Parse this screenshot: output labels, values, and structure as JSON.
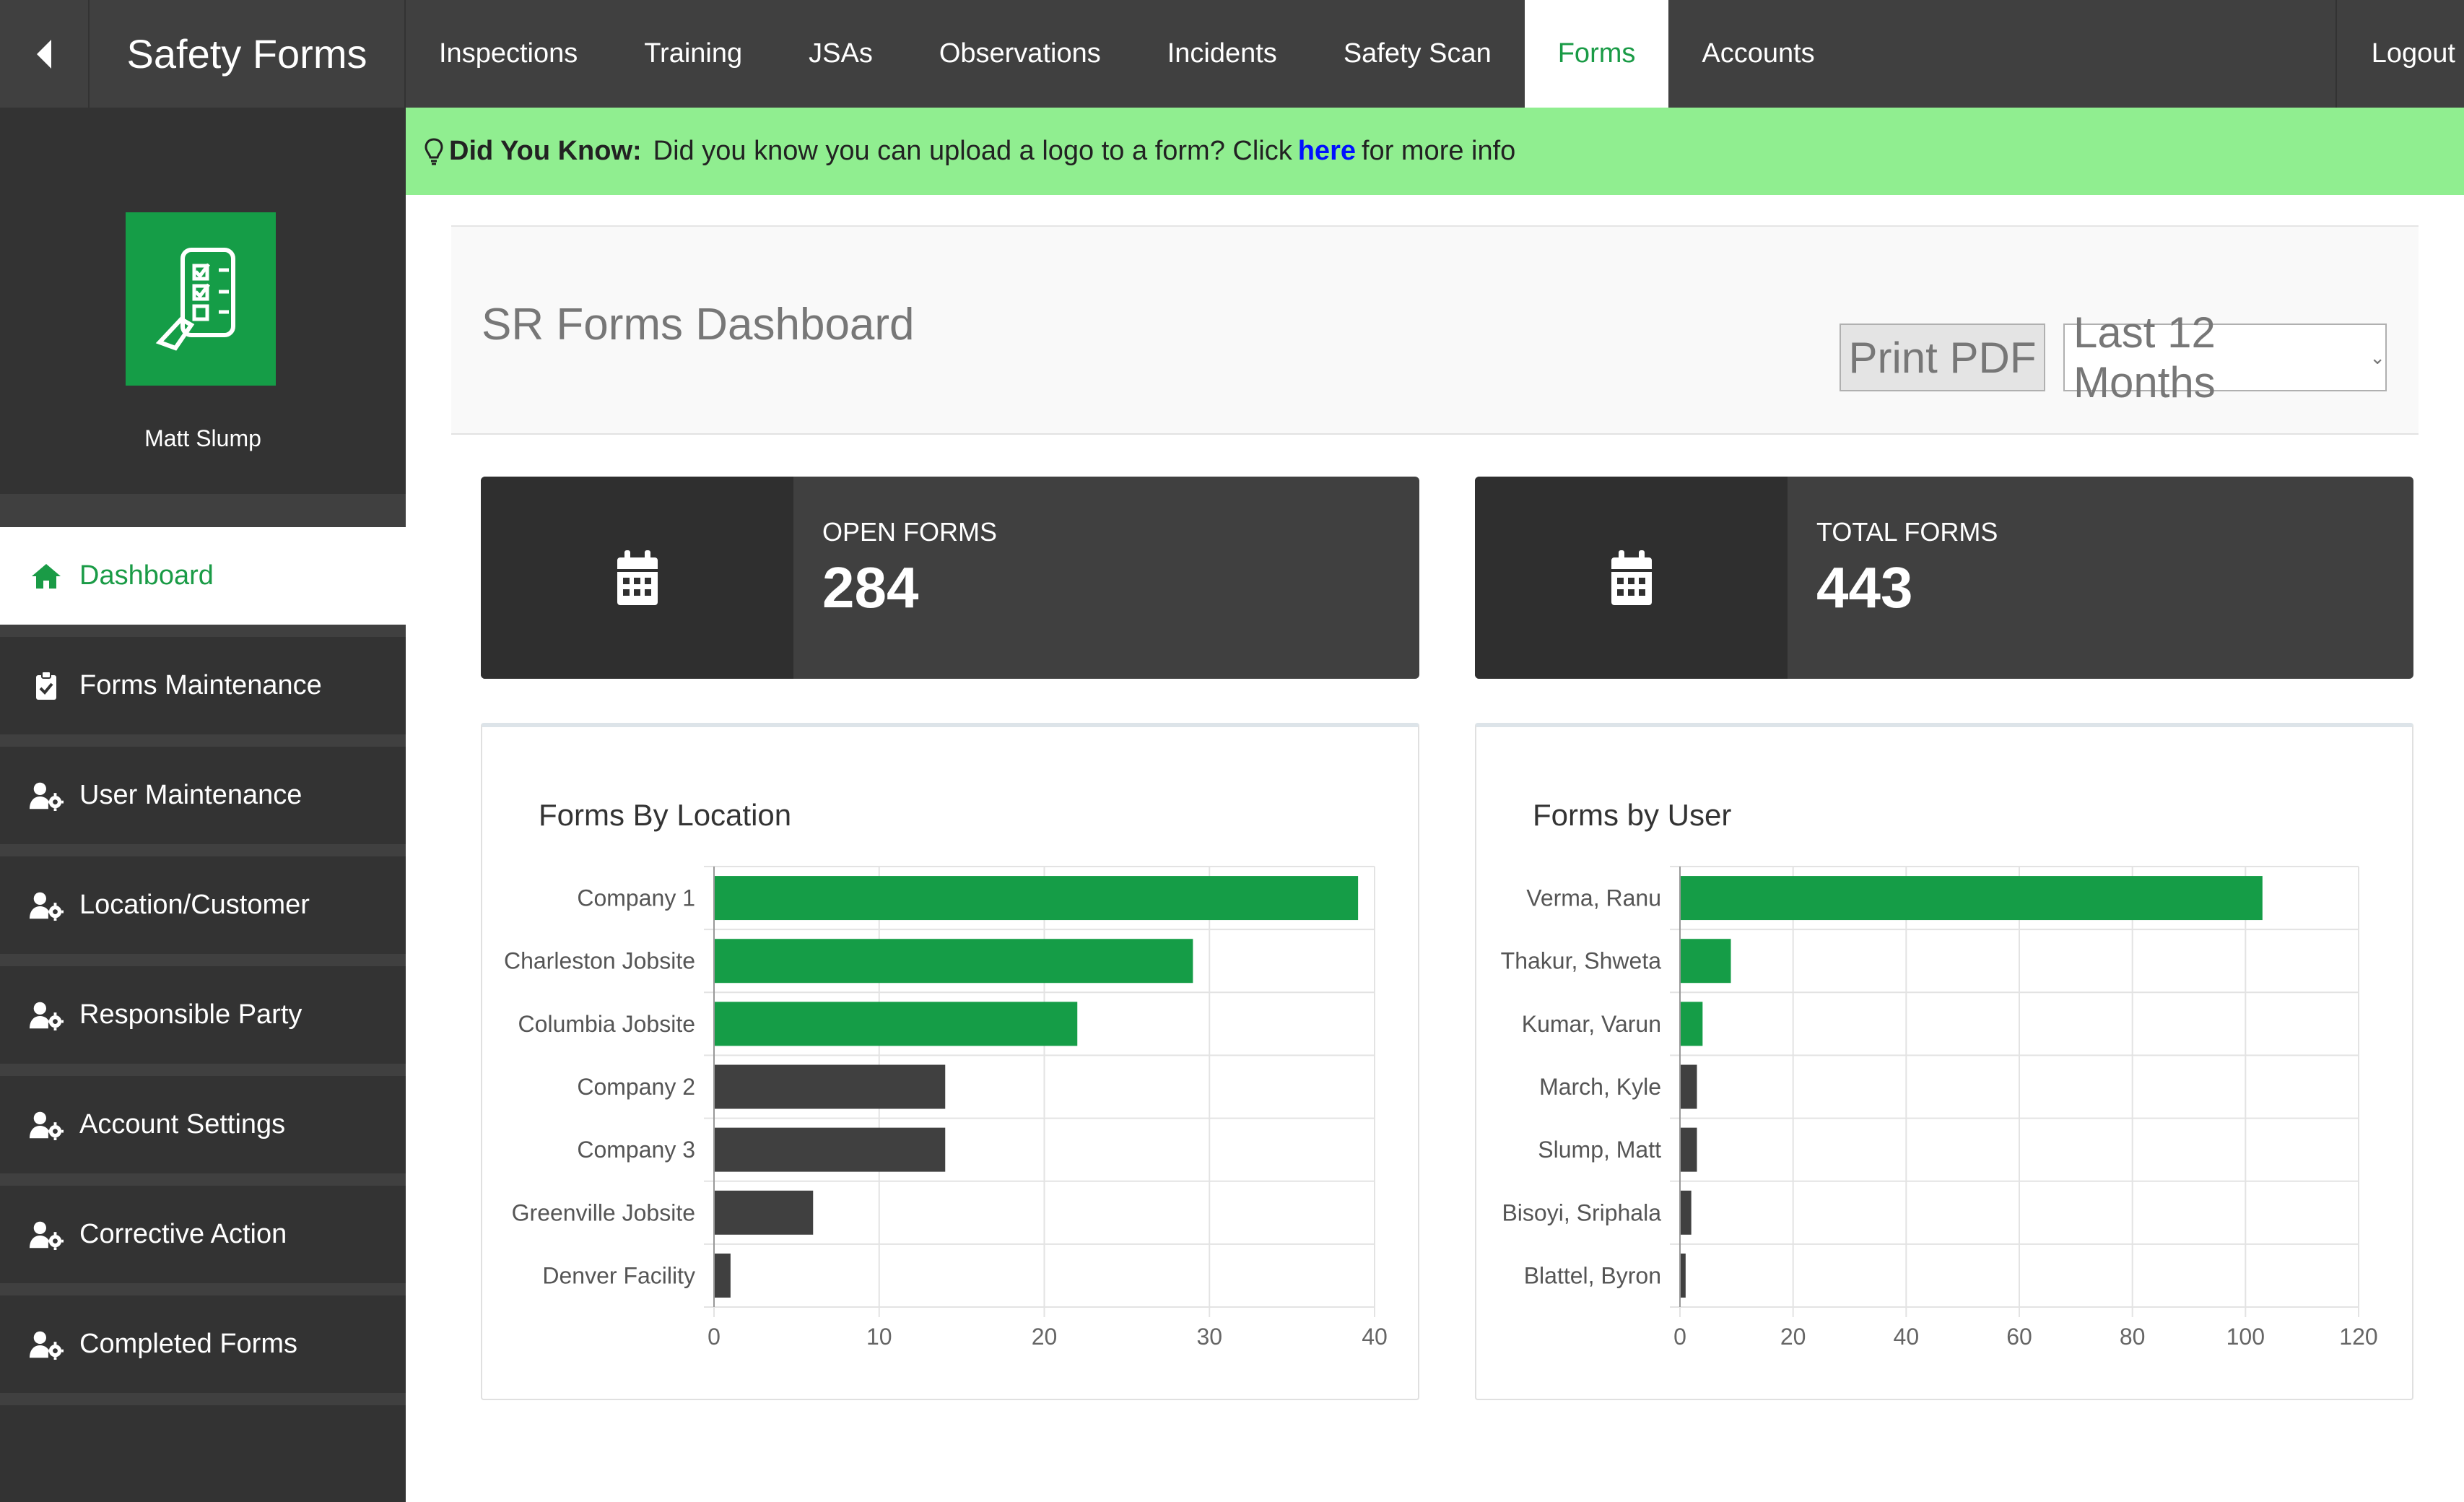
{
  "topbar": {
    "back_icon": "chevron-left-icon",
    "brand": "Safety Forms",
    "nav": [
      "Inspections",
      "Training",
      "JSAs",
      "Observations",
      "Incidents",
      "Safety Scan",
      "Forms",
      "Accounts"
    ],
    "active_nav": "Forms",
    "logout": "Logout"
  },
  "sidebar": {
    "user_name": "Matt Slump",
    "items": [
      {
        "label": "Dashboard",
        "icon": "home-icon"
      },
      {
        "label": "Forms Maintenance",
        "icon": "clipboard-check-icon"
      },
      {
        "label": "User Maintenance",
        "icon": "user-gear-icon"
      },
      {
        "label": "Location/Customer",
        "icon": "user-gear-icon"
      },
      {
        "label": "Responsible Party",
        "icon": "user-gear-icon"
      },
      {
        "label": "Account Settings",
        "icon": "user-gear-icon"
      },
      {
        "label": "Corrective Action",
        "icon": "user-gear-icon"
      },
      {
        "label": "Completed Forms",
        "icon": "user-gear-icon"
      }
    ]
  },
  "banner": {
    "prefix": "Did You Know:",
    "text": "Did you know you can upload a logo to a form? Click",
    "link": "here",
    "suffix": "for more info"
  },
  "dashboard": {
    "title": "SR Forms Dashboard",
    "print_label": "Print PDF",
    "range_label": "Last 12 Months",
    "stats": [
      {
        "label": "OPEN FORMS",
        "value": "284"
      },
      {
        "label": "TOTAL FORMS",
        "value": "443"
      }
    ]
  },
  "colors": {
    "accent": "#159d47",
    "dark_bar": "#404040",
    "banner": "#90ee90"
  },
  "chart_data": [
    {
      "type": "bar",
      "orientation": "horizontal",
      "title": "Forms By Location",
      "categories": [
        "Company 1",
        "Charleston Jobsite",
        "Columbia Jobsite",
        "Company 2",
        "Company 3",
        "Greenville Jobsite",
        "Denver Facility"
      ],
      "values": [
        39,
        29,
        22,
        14,
        14,
        6,
        1
      ],
      "bar_colors": [
        "#159d47",
        "#159d47",
        "#159d47",
        "#404040",
        "#404040",
        "#404040",
        "#404040"
      ],
      "xlim": [
        0,
        40
      ],
      "xticks": [
        0,
        10,
        20,
        30,
        40
      ],
      "grid": true
    },
    {
      "type": "bar",
      "orientation": "horizontal",
      "title": "Forms by User",
      "categories": [
        "Verma, Ranu",
        "Thakur, Shweta",
        "Kumar, Varun",
        "March, Kyle",
        "Slump, Matt",
        "Bisoyi, Sriphala",
        "Blattel, Byron"
      ],
      "values": [
        103,
        9,
        4,
        3,
        3,
        2,
        1
      ],
      "bar_colors": [
        "#159d47",
        "#159d47",
        "#159d47",
        "#404040",
        "#404040",
        "#404040",
        "#404040"
      ],
      "xlim": [
        0,
        120
      ],
      "xticks": [
        0,
        20,
        40,
        60,
        80,
        100,
        120
      ],
      "grid": true
    }
  ]
}
